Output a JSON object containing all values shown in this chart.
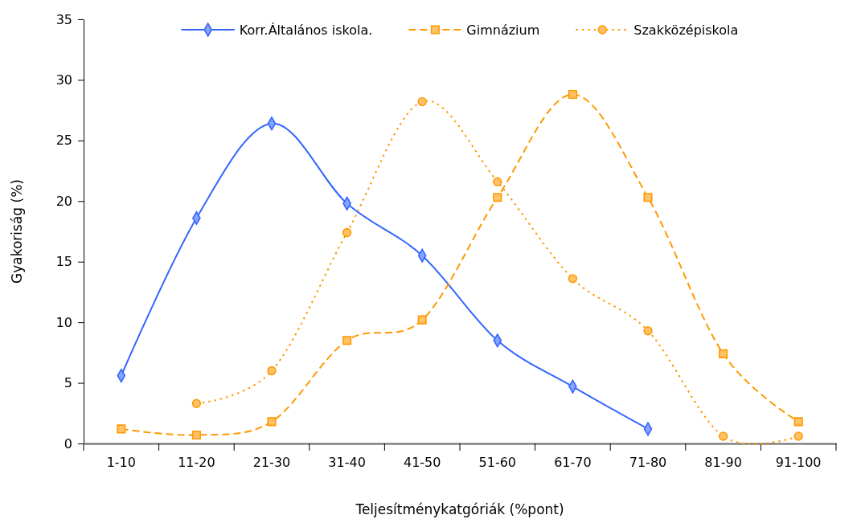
{
  "chart_data": {
    "type": "line",
    "xlabel": "Teljesítménykatgóriák (%pont)",
    "ylabel": "Gyakoriság (%)",
    "categories": [
      "1-10",
      "11-20",
      "21-30",
      "31-40",
      "41-50",
      "51-60",
      "61-70",
      "71-80",
      "81-90",
      "91-100"
    ],
    "series": [
      {
        "name": "Korr.Általános iskola.",
        "color": "#3366ff",
        "marker": "diamond",
        "line_style": "solid",
        "values": [
          5.6,
          18.6,
          26.4,
          19.8,
          15.5,
          8.5,
          4.7,
          1.2,
          null,
          null
        ]
      },
      {
        "name": "Gimnázium",
        "color": "#ff9900",
        "marker": "square",
        "line_style": "dashed",
        "values": [
          1.2,
          0.7,
          1.8,
          8.5,
          10.2,
          20.3,
          28.8,
          20.3,
          7.4,
          1.8
        ]
      },
      {
        "name": "Szakközépiskola",
        "color": "#ff9900",
        "marker": "circle",
        "line_style": "dotted",
        "values": [
          null,
          3.3,
          6.0,
          17.4,
          28.2,
          21.6,
          13.6,
          9.3,
          0.6,
          0.6
        ]
      }
    ],
    "ylim": [
      0,
      35
    ],
    "yticks": [
      0,
      5,
      10,
      15,
      20,
      25,
      30,
      35
    ],
    "grid": false,
    "legend": "top"
  }
}
